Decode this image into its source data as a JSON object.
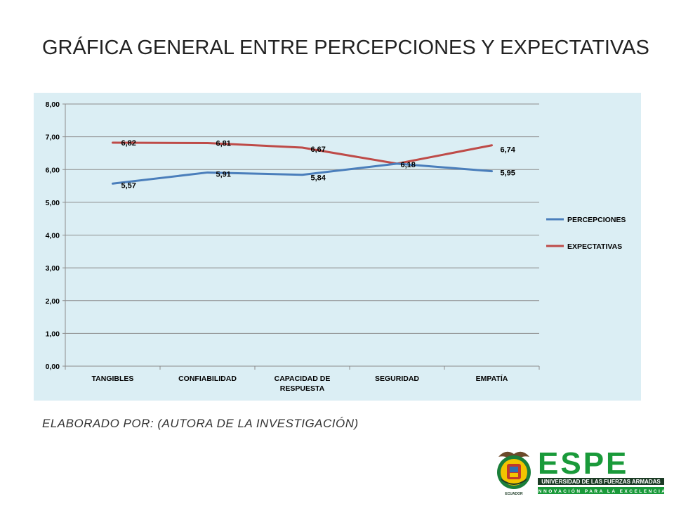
{
  "slide": {
    "title": "GRÁFICA GENERAL ENTRE PERCEPCIONES Y EXPECTATIVAS",
    "caption": "ELABORADO POR: (AUTORA DE LA INVESTIGACIÓN)"
  },
  "logo": {
    "wordmark": "ESPE",
    "subtitle": "UNIVERSIDAD DE LAS FUERZAS ARMADAS",
    "tagline": "INNOVACIÓN PARA LA EXCELENCIA",
    "seal_text": "ECUADOR",
    "brand_green": "#1a9a3a",
    "brand_dark": "#1c3b25"
  },
  "chart_data": {
    "type": "line",
    "categories": [
      "TANGIBLES",
      "CONFIABILIDAD",
      "CAPACIDAD DE RESPUESTA",
      "SEGURIDAD",
      "EMPATÍA"
    ],
    "category_lines": [
      [
        "TANGIBLES"
      ],
      [
        "CONFIABILIDAD"
      ],
      [
        "CAPACIDAD DE",
        "RESPUESTA"
      ],
      [
        "SEGURIDAD"
      ],
      [
        "EMPATÍA"
      ]
    ],
    "series": [
      {
        "name": "PERCEPCIONES",
        "color": "#4a7ebb",
        "values": [
          5.57,
          5.91,
          5.84,
          6.18,
          5.95
        ],
        "labels": [
          "5,57",
          "5,91",
          "5,84",
          "6,18",
          "5,95"
        ]
      },
      {
        "name": "EXPECTATIVAS",
        "color": "#be4b48",
        "values": [
          6.82,
          6.81,
          6.67,
          6.18,
          6.74
        ],
        "labels": [
          "6,82",
          "6,81",
          "6,67",
          "",
          "6,74"
        ]
      }
    ],
    "ylim": [
      0,
      8
    ],
    "yticks": [
      "0,00",
      "1,00",
      "2,00",
      "3,00",
      "4,00",
      "5,00",
      "6,00",
      "7,00",
      "8,00"
    ],
    "grid": true,
    "legend": "right",
    "background": "#dbeef4"
  }
}
